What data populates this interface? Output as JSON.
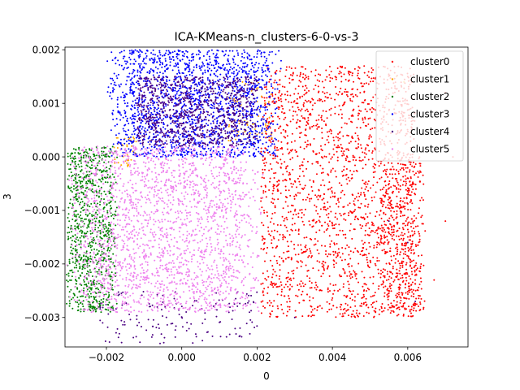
{
  "chart_data": {
    "type": "scatter",
    "title": "ICA-KMeans-n_clusters-6-0-vs-3",
    "xlabel": "0",
    "ylabel": "3",
    "xlim": [
      -0.0031,
      0.0076
    ],
    "ylim": [
      -0.00355,
      0.00205
    ],
    "xticks": [
      -0.002,
      0.0,
      0.002,
      0.004,
      0.006
    ],
    "xtick_labels": [
      "−0.002",
      "0.000",
      "0.002",
      "0.004",
      "0.006"
    ],
    "yticks": [
      -0.003,
      -0.002,
      -0.001,
      0.0,
      0.001,
      0.002
    ],
    "ytick_labels": [
      "−0.003",
      "−0.002",
      "−0.001",
      "0.000",
      "0.001",
      "0.002"
    ],
    "grid": false,
    "legend_position": "top-right",
    "series": [
      {
        "name": "cluster0",
        "color": "#ff0000",
        "regions": [
          {
            "xmin": 0.0021,
            "xmax": 0.0062,
            "ymin": -0.003,
            "ymax": 0.0017,
            "n": 2000
          },
          {
            "xmin": 0.0052,
            "xmax": 0.0065,
            "ymin": -0.0029,
            "ymax": 0.0,
            "n": 400,
            "diagonal": true
          }
        ],
        "points": [
          [
            0.0072,
            0.0
          ],
          [
            0.007,
            -0.0012
          ],
          [
            0.0067,
            -0.0023
          ],
          [
            0.0055,
            -0.0026
          ],
          [
            0.006,
            0.0015
          ],
          [
            0.007,
            0.0012
          ]
        ]
      },
      {
        "name": "cluster1",
        "color": "#ffa500",
        "regions": [
          {
            "xmin": -0.0018,
            "xmax": -0.0012,
            "ymin": -0.0002,
            "ymax": 0.0004,
            "n": 40
          },
          {
            "xmin": 0.0012,
            "xmax": 0.0024,
            "ymin": 0.0003,
            "ymax": 0.0014,
            "n": 70
          }
        ],
        "points": [
          [
            0.0057,
            0.0015
          ],
          [
            0.0059,
            0.0014
          ]
        ]
      },
      {
        "name": "cluster2",
        "color": "#008000",
        "regions": [
          {
            "xmin": -0.0031,
            "xmax": -0.0017,
            "ymin": -0.0029,
            "ymax": 0.0002,
            "n": 900,
            "diagonal": true
          }
        ],
        "points": []
      },
      {
        "name": "cluster3",
        "color": "#0000ff",
        "regions": [
          {
            "xmin": -0.002,
            "xmax": 0.0027,
            "ymin": 0.0,
            "ymax": 0.002,
            "n": 1800,
            "diagonal": true
          }
        ],
        "points": []
      },
      {
        "name": "cluster4",
        "color": "#4b0082",
        "regions": [
          {
            "xmin": -0.0012,
            "xmax": 0.002,
            "ymin": 0.0002,
            "ymax": 0.0015,
            "n": 900
          },
          {
            "xmin": -0.0022,
            "xmax": 0.002,
            "ymin": -0.0035,
            "ymax": -0.0025,
            "n": 150
          }
        ],
        "points": [
          [
            0.003,
            -0.003
          ],
          [
            0.0055,
            -0.0012
          ],
          [
            0.0062,
            -0.0027
          ],
          [
            0.006,
            -0.0016
          ],
          [
            -0.0021,
            -0.0031
          ]
        ]
      },
      {
        "name": "cluster5",
        "color": "#ee82ee",
        "regions": [
          {
            "xmin": -0.0031,
            "xmax": 0.0022,
            "ymin": -0.0029,
            "ymax": 0.0002,
            "n": 2200,
            "diagonal": true
          }
        ],
        "points": []
      }
    ]
  }
}
